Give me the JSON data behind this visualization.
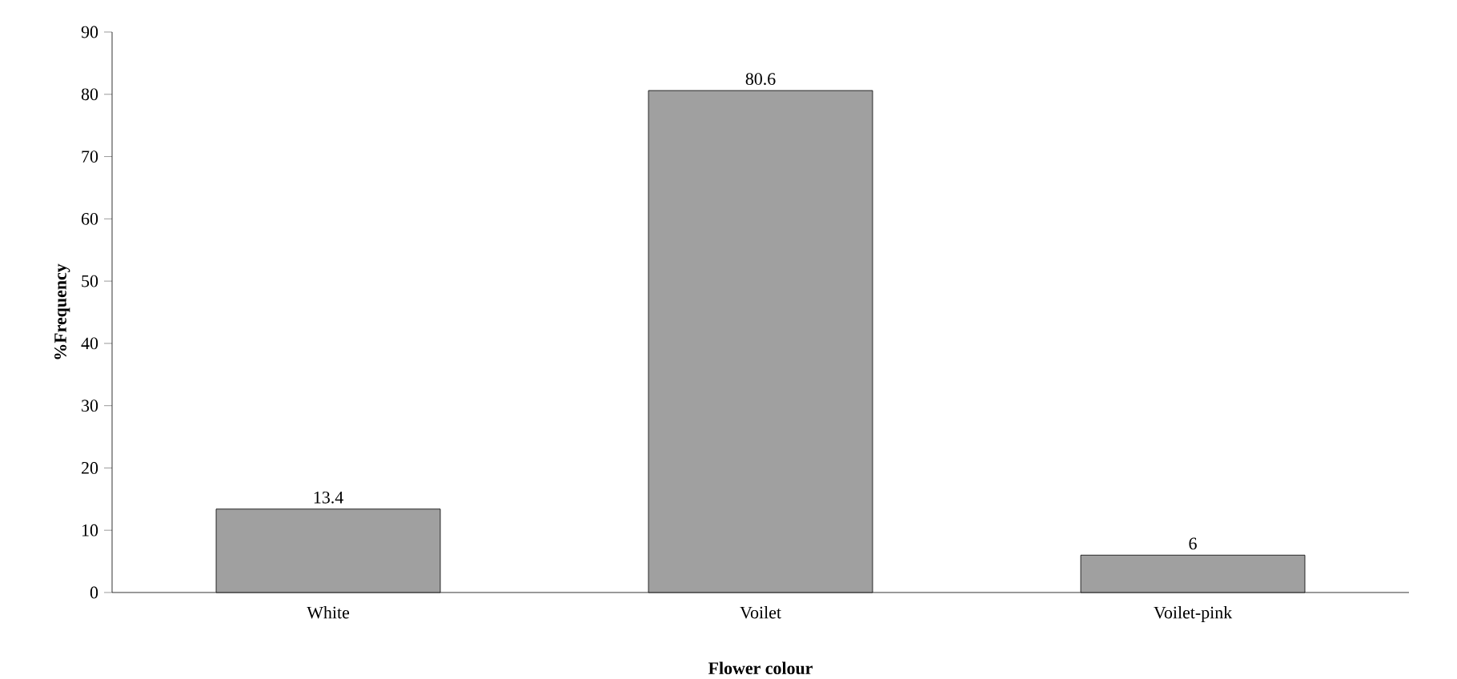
{
  "chart_data": {
    "type": "bar",
    "xlabel": "Flower colour",
    "ylabel": "%Frequency",
    "categories": [
      "White",
      "Voilet",
      "Voilet-pink"
    ],
    "values": [
      13.4,
      80.6,
      6
    ],
    "color": "#a0a0a0",
    "ylim": [
      0,
      90
    ],
    "yticks": [
      0,
      10,
      20,
      30,
      40,
      50,
      60,
      70,
      80,
      90
    ],
    "data_labels": true,
    "grid": false
  }
}
